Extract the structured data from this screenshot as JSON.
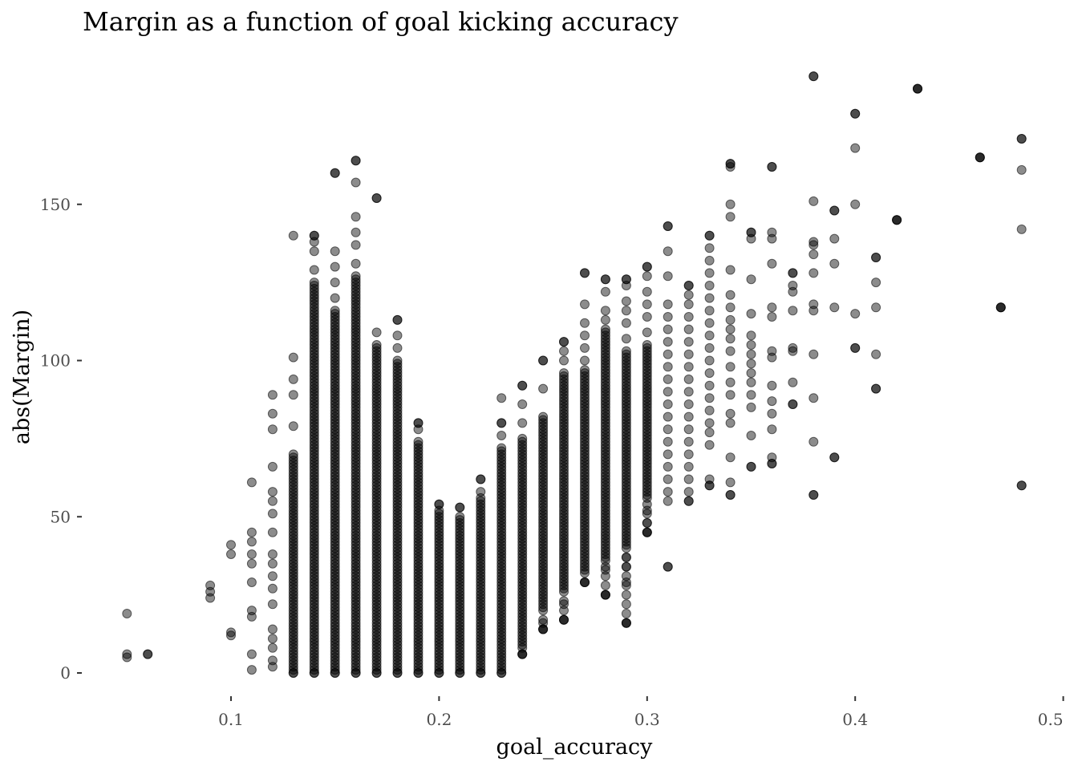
{
  "chart_data": {
    "type": "scatter",
    "title": "Margin as a function of goal kicking accuracy",
    "xlabel": "goal_accuracy",
    "ylabel": "abs(Margin)",
    "xlim": [
      0.035,
      0.5
    ],
    "ylim": [
      -8,
      195
    ],
    "xticks": [
      0.1,
      0.2,
      0.3,
      0.4,
      0.5
    ],
    "xtick_labels": [
      "0.1",
      "0.2",
      "0.3",
      "0.4",
      "0.5"
    ],
    "yticks": [
      0,
      50,
      100,
      150
    ],
    "ytick_labels": [
      "0",
      "50",
      "100",
      "150"
    ],
    "grid": false,
    "point_color": "#000000",
    "point_alpha": 0.45,
    "columns": [
      {
        "x": 0.05,
        "min": 5,
        "max": 19,
        "extra": [
          6
        ]
      },
      {
        "x": 0.06,
        "min": 6,
        "max": 6,
        "extra": []
      },
      {
        "x": 0.09,
        "min": 24,
        "max": 28,
        "extra": [
          26
        ]
      },
      {
        "x": 0.1,
        "min": 12,
        "max": 41,
        "extra": [
          13,
          38
        ]
      },
      {
        "x": 0.11,
        "min": 1,
        "max": 61,
        "extra": [
          6,
          18,
          20,
          29,
          35,
          38,
          42,
          45
        ]
      },
      {
        "x": 0.12,
        "min": 2,
        "max": 89,
        "extra": [
          4,
          8,
          11,
          14,
          22,
          27,
          31,
          35,
          38,
          45,
          51,
          55,
          58,
          66,
          78,
          83
        ]
      },
      {
        "x": 0.13,
        "min": 0,
        "max": 140,
        "extra": [
          79,
          89,
          94,
          101
        ]
      },
      {
        "x": 0.14,
        "min": 0,
        "max": 140,
        "dense_to": 125,
        "extra": [
          129,
          135,
          138,
          140
        ]
      },
      {
        "x": 0.15,
        "min": 0,
        "max": 160,
        "dense_to": 116,
        "extra": [
          120,
          125,
          130,
          135,
          160
        ]
      },
      {
        "x": 0.16,
        "min": 0,
        "max": 164,
        "dense_to": 127,
        "extra": [
          131,
          137,
          141,
          146,
          157,
          164
        ]
      },
      {
        "x": 0.17,
        "min": 0,
        "max": 152,
        "dense_to": 105,
        "extra": [
          109,
          152
        ]
      },
      {
        "x": 0.18,
        "min": 0,
        "max": 113,
        "dense_to": 100,
        "extra": [
          104,
          108,
          113
        ]
      },
      {
        "x": 0.19,
        "min": 0,
        "max": 80,
        "dense_to": 74,
        "extra": [
          78,
          80
        ]
      },
      {
        "x": 0.2,
        "min": 0,
        "max": 54,
        "dense_to": 52,
        "extra": [
          54
        ]
      },
      {
        "x": 0.21,
        "min": 0,
        "max": 53,
        "dense_to": 50,
        "extra": [
          53
        ]
      },
      {
        "x": 0.22,
        "min": 0,
        "max": 62,
        "dense_to": 56,
        "extra": [
          58,
          62
        ]
      },
      {
        "x": 0.23,
        "min": 0,
        "max": 80,
        "dense_to": 72,
        "extra": [
          76,
          80,
          88
        ]
      },
      {
        "x": 0.24,
        "min": 6,
        "max": 92,
        "dense_to": 75,
        "dense_from": 10,
        "extra": [
          6,
          8,
          80,
          86,
          92
        ]
      },
      {
        "x": 0.25,
        "min": 14,
        "max": 100,
        "dense_to": 82,
        "dense_from": 20,
        "extra": [
          14,
          16,
          91,
          100
        ]
      },
      {
        "x": 0.26,
        "min": 17,
        "max": 106,
        "dense_to": 96,
        "dense_from": 27,
        "extra": [
          17,
          22,
          100,
          103,
          106
        ]
      },
      {
        "x": 0.27,
        "min": 29,
        "max": 128,
        "dense_to": 97,
        "dense_from": 32,
        "extra": [
          29,
          100,
          104,
          108,
          112,
          118,
          128
        ]
      },
      {
        "x": 0.28,
        "min": 25,
        "max": 126,
        "dense_to": 110,
        "dense_from": 38,
        "extra": [
          25,
          33,
          36,
          113,
          116,
          122,
          126
        ]
      },
      {
        "x": 0.29,
        "min": 16,
        "max": 126,
        "dense_to": 103,
        "dense_from": 41,
        "extra": [
          16,
          29,
          34,
          37,
          107,
          112,
          116,
          119,
          124,
          126
        ]
      },
      {
        "x": 0.3,
        "min": 45,
        "max": 130,
        "dense_to": 105,
        "dense_from": 56,
        "extra": [
          45,
          48,
          52,
          109,
          114,
          118,
          122,
          127,
          130
        ]
      },
      {
        "x": 0.31,
        "min": 34,
        "max": 143,
        "extra": [
          34,
          55,
          58,
          62,
          66,
          70,
          74,
          78,
          82,
          86,
          90,
          94,
          98,
          102,
          106,
          110,
          114,
          118,
          127,
          135,
          143
        ]
      },
      {
        "x": 0.32,
        "min": 55,
        "max": 124,
        "extra": [
          55,
          58,
          62,
          66,
          70,
          74,
          78,
          82,
          86,
          90,
          94,
          98,
          102,
          106,
          110,
          114,
          118,
          121,
          124
        ]
      },
      {
        "x": 0.33,
        "min": 60,
        "max": 140,
        "extra": [
          60,
          62,
          73,
          77,
          80,
          84,
          88,
          92,
          96,
          100,
          104,
          108,
          112,
          116,
          120,
          124,
          128,
          132,
          136,
          140
        ]
      },
      {
        "x": 0.34,
        "min": 57,
        "max": 163,
        "extra": [
          57,
          61,
          69,
          80,
          83,
          89,
          93,
          98,
          103,
          107,
          110,
          113,
          117,
          121,
          129,
          146,
          150,
          162,
          163
        ]
      },
      {
        "x": 0.35,
        "min": 66,
        "max": 141,
        "extra": [
          66,
          76,
          85,
          89,
          93,
          96,
          99,
          102,
          105,
          108,
          115,
          126,
          139,
          141
        ]
      },
      {
        "x": 0.36,
        "min": 67,
        "max": 162,
        "extra": [
          67,
          69,
          78,
          83,
          87,
          92,
          101,
          103,
          114,
          117,
          131,
          139,
          141,
          162
        ]
      },
      {
        "x": 0.37,
        "min": 86,
        "max": 128,
        "extra": [
          86,
          93,
          103,
          104,
          116,
          122,
          124,
          128
        ]
      },
      {
        "x": 0.38,
        "min": 57,
        "max": 191,
        "extra": [
          57,
          74,
          88,
          102,
          116,
          118,
          128,
          134,
          137,
          138,
          151,
          191
        ]
      },
      {
        "x": 0.39,
        "min": 69,
        "max": 148,
        "extra": [
          69,
          117,
          131,
          139,
          148
        ]
      },
      {
        "x": 0.4,
        "min": 104,
        "max": 179,
        "extra": [
          104,
          115,
          150,
          168,
          179
        ]
      },
      {
        "x": 0.41,
        "min": 91,
        "max": 133,
        "extra": [
          91,
          102,
          117,
          125,
          133
        ]
      },
      {
        "x": 0.42,
        "min": 145,
        "max": 145,
        "extra": [
          145
        ]
      },
      {
        "x": 0.43,
        "min": 187,
        "max": 187,
        "extra": [
          187
        ]
      },
      {
        "x": 0.46,
        "min": 165,
        "max": 165,
        "extra": [
          165
        ]
      },
      {
        "x": 0.47,
        "min": 117,
        "max": 117,
        "extra": [
          117
        ]
      },
      {
        "x": 0.48,
        "min": 60,
        "max": 171,
        "extra": [
          60,
          142,
          161,
          171
        ]
      }
    ]
  }
}
